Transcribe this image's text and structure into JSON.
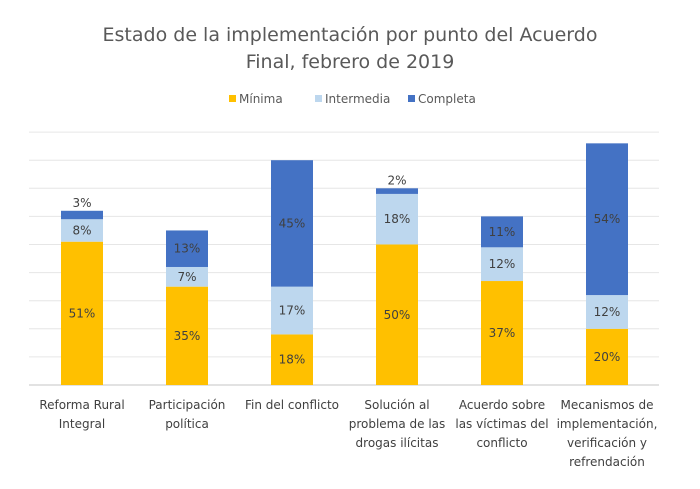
{
  "chart_data": {
    "type": "bar",
    "stacked": true,
    "title": "Estado de la implementación por punto del Acuerdo Final, febrero de 2019",
    "title_lines": [
      "Estado de la implementación por punto del Acuerdo",
      "Final, febrero de 2019"
    ],
    "xlabel": "",
    "ylabel": "",
    "ylim": [
      0,
      90
    ],
    "grid": true,
    "grid_step": 10,
    "legend_position": "top-center",
    "value_format": "percent",
    "categories": [
      "Reforma Rural Integral",
      "Participación política",
      "Fin del conflicto",
      "Solución al problema de las drogas ilícitas",
      "Acuerdo sobre las víctimas del conflicto",
      "Mecanismos de implementación, verificación y refrendación"
    ],
    "category_label_lines": [
      [
        "Reforma Rural",
        "Integral"
      ],
      [
        "Participación",
        "política"
      ],
      [
        "Fin del conflicto"
      ],
      [
        "Solución al",
        "problema de las",
        "drogas ilícitas"
      ],
      [
        "Acuerdo sobre",
        "las víctimas del",
        "conflicto"
      ],
      [
        "Mecanismos de",
        "implementación,",
        "verificación y",
        "refrendación"
      ]
    ],
    "series": [
      {
        "name": "Mínima",
        "color": "#FFC000",
        "values": [
          51,
          35,
          18,
          50,
          37,
          20
        ]
      },
      {
        "name": "Intermedia",
        "color": "#BDD7EE",
        "values": [
          8,
          7,
          17,
          18,
          12,
          12
        ]
      },
      {
        "name": "Completa",
        "color": "#4472C4",
        "values": [
          3,
          13,
          45,
          2,
          11,
          54
        ]
      }
    ]
  }
}
